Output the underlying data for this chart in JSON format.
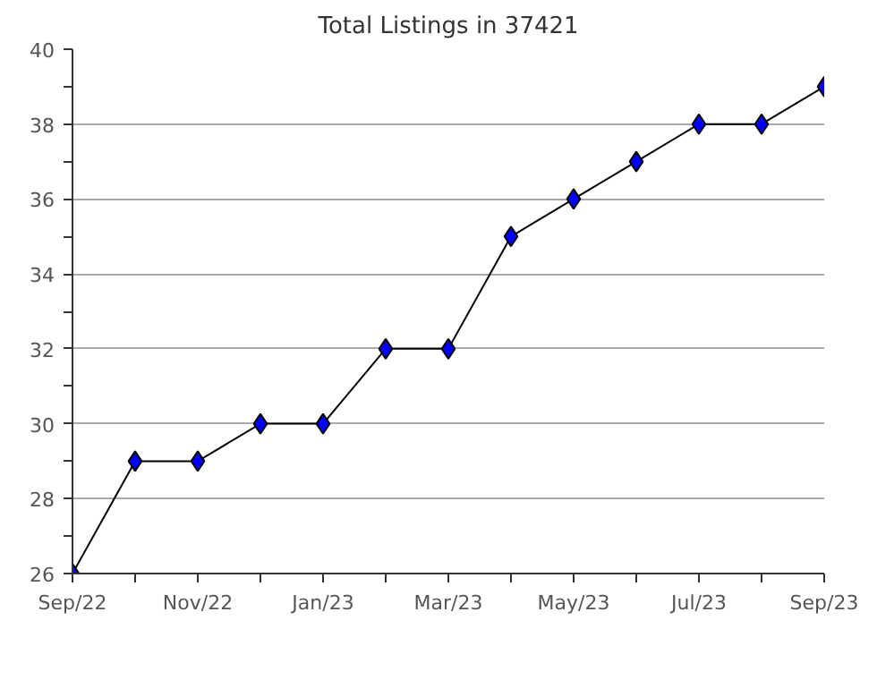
{
  "chart_data": {
    "type": "line",
    "title": "Total Listings in 37421",
    "categories": [
      "Sep/22",
      null,
      "Nov/22",
      null,
      "Jan/23",
      null,
      "Mar/23",
      null,
      "May/23",
      null,
      "Jul/23",
      null,
      "Sep/23"
    ],
    "series": [
      {
        "color": "#0000ff",
        "values": [
          26,
          29,
          29,
          30,
          30,
          32,
          32,
          35,
          36,
          37,
          38,
          38,
          39
        ]
      }
    ],
    "ylim": [
      26,
      40
    ],
    "yticks": [
      26,
      {
        "value": 27,
        "label": null
      },
      28,
      {
        "value": 29,
        "label": null
      },
      30,
      {
        "value": 31,
        "label": null
      },
      32,
      {
        "value": 33,
        "label": null
      },
      34,
      {
        "value": 35,
        "label": null
      },
      36,
      {
        "value": 37,
        "label": null
      },
      38,
      {
        "value": 39,
        "label": null
      },
      40
    ],
    "grid": "y",
    "marker": "diamond",
    "line_style": "solid"
  }
}
